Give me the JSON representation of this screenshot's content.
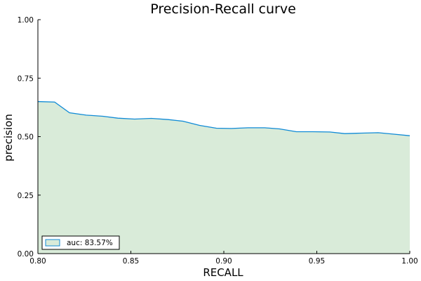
{
  "chart_data": {
    "type": "area",
    "title": "Precision-Recall curve",
    "xlabel": "RECALL",
    "ylabel": "precision",
    "xlim": [
      0.8,
      1.0
    ],
    "ylim": [
      0.0,
      1.0
    ],
    "xticks": [
      0.8,
      0.85,
      0.9,
      0.95,
      1.0
    ],
    "xtick_labels": [
      "0.80",
      "0.85",
      "0.90",
      "0.95",
      "1.00"
    ],
    "yticks": [
      0.0,
      0.25,
      0.5,
      0.75,
      1.0
    ],
    "ytick_labels": [
      "0.00",
      "0.25",
      "0.50",
      "0.75",
      "1.00"
    ],
    "grid": false,
    "legend_position": "bottom-left",
    "series": [
      {
        "name": "auc: 83.57%",
        "line_color": "#0f8ad6",
        "fill_color": "#d9ebd9",
        "x": [
          0.8,
          0.809,
          0.817,
          0.826,
          0.835,
          0.843,
          0.852,
          0.861,
          0.87,
          0.878,
          0.887,
          0.896,
          0.904,
          0.913,
          0.922,
          0.93,
          0.939,
          0.948,
          0.957,
          0.965,
          0.974,
          0.983,
          0.991,
          1.0
        ],
        "y": [
          0.65,
          0.648,
          0.602,
          0.592,
          0.587,
          0.579,
          0.575,
          0.578,
          0.573,
          0.566,
          0.548,
          0.536,
          0.535,
          0.538,
          0.538,
          0.533,
          0.521,
          0.521,
          0.52,
          0.513,
          0.515,
          0.517,
          0.511,
          0.504
        ]
      }
    ]
  }
}
